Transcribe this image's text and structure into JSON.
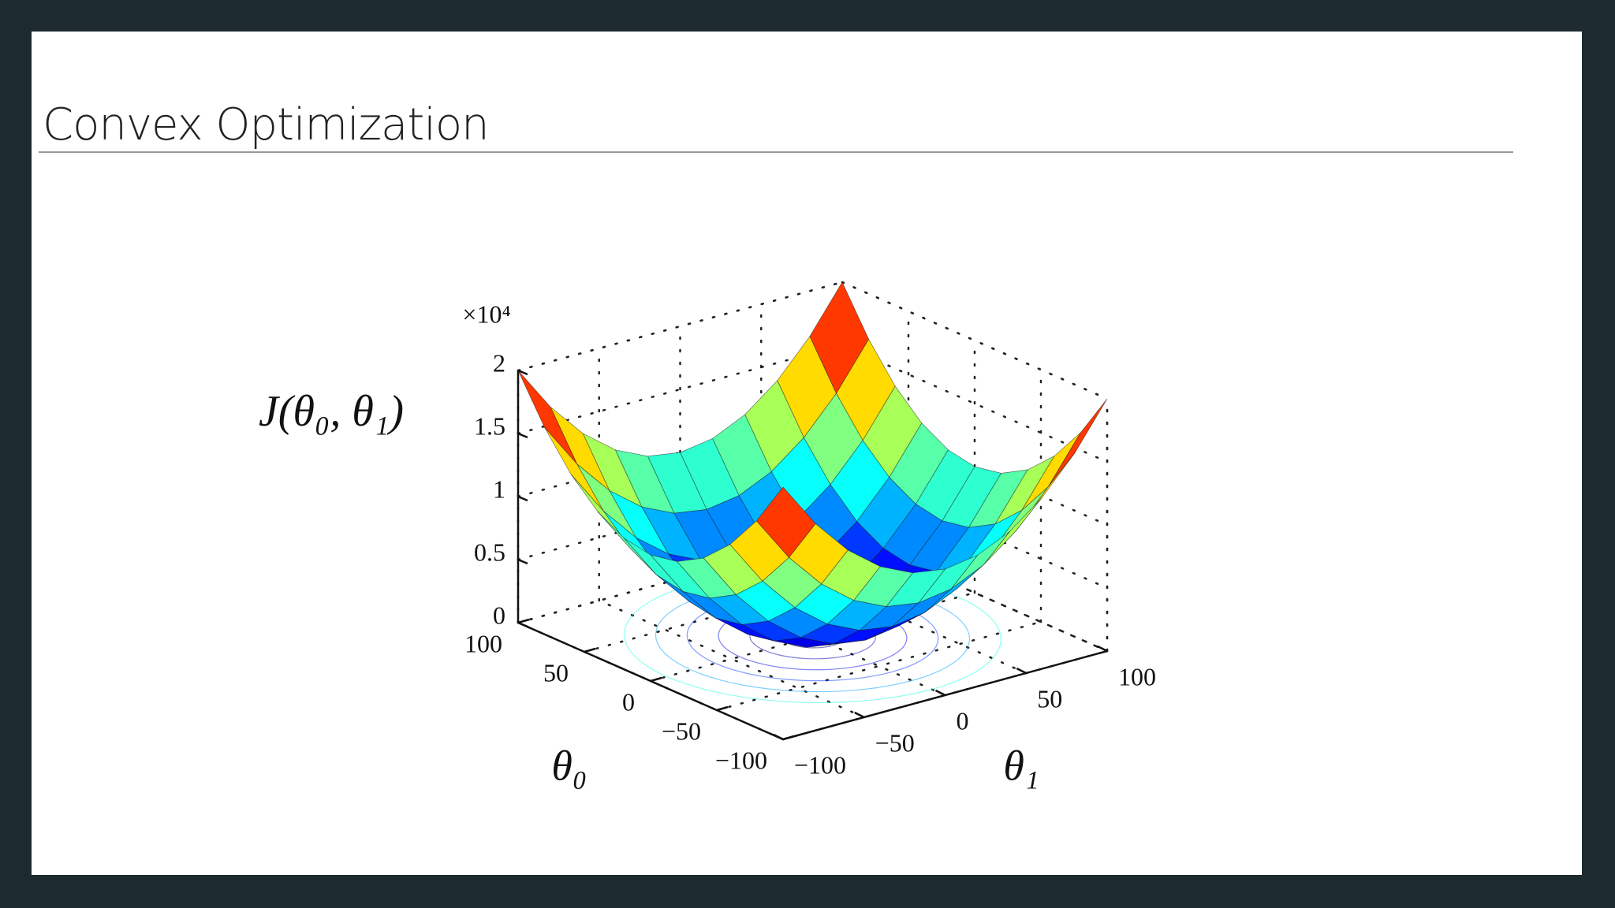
{
  "title": "Convex Optimization",
  "chart_data": {
    "type": "surface",
    "zlabel": "J(θ₀, θ₁)",
    "xlabel": "θ₀",
    "ylabel": "θ₁",
    "z_multiplier": "×10⁴",
    "colormap": "jet",
    "x": [
      -100,
      -80,
      -60,
      -40,
      -20,
      0,
      20,
      40,
      60,
      80,
      100
    ],
    "y": [
      -100,
      -80,
      -60,
      -40,
      -20,
      0,
      20,
      40,
      60,
      80,
      100
    ],
    "z": [
      [
        2,
        1.64,
        1.36,
        1.16,
        1.04,
        1,
        1.04,
        1.16,
        1.36,
        1.64,
        2
      ],
      [
        1.64,
        1.28,
        1,
        0.8,
        0.68,
        0.64,
        0.68,
        0.8,
        1,
        1.28,
        1.64
      ],
      [
        1.36,
        1,
        0.72,
        0.52,
        0.4,
        0.36,
        0.4,
        0.52,
        0.72,
        1,
        1.36
      ],
      [
        1.16,
        0.8,
        0.52,
        0.32,
        0.2,
        0.16,
        0.2,
        0.32,
        0.52,
        0.8,
        1.16
      ],
      [
        1.04,
        0.68,
        0.4,
        0.2,
        0.08,
        0.04,
        0.08,
        0.2,
        0.4,
        0.68,
        1.04
      ],
      [
        1,
        0.64,
        0.36,
        0.16,
        0.04,
        0,
        0.04,
        0.16,
        0.36,
        0.64,
        1
      ],
      [
        1.04,
        0.68,
        0.4,
        0.2,
        0.08,
        0.04,
        0.08,
        0.2,
        0.4,
        0.68,
        1.04
      ],
      [
        1.16,
        0.8,
        0.52,
        0.32,
        0.2,
        0.16,
        0.2,
        0.32,
        0.52,
        0.8,
        1.16
      ],
      [
        1.36,
        1,
        0.72,
        0.52,
        0.4,
        0.36,
        0.4,
        0.52,
        0.72,
        1,
        1.36
      ],
      [
        1.64,
        1.28,
        1,
        0.8,
        0.68,
        0.64,
        0.68,
        0.8,
        1,
        1.28,
        1.64
      ],
      [
        2,
        1.64,
        1.36,
        1.16,
        1.04,
        1,
        1.04,
        1.16,
        1.36,
        1.64,
        2
      ]
    ],
    "xlim": [
      -100,
      100
    ],
    "ylim": [
      -100,
      100
    ],
    "zlim": [
      0,
      2
    ],
    "xticks": [
      {
        "value": -100,
        "label": "−100"
      },
      {
        "value": -50,
        "label": "−50"
      },
      0,
      50,
      100
    ],
    "yticks": [
      {
        "value": -100,
        "label": "−100"
      },
      {
        "value": -50,
        "label": "−50"
      },
      0,
      50,
      100
    ],
    "zticks": [
      0,
      0.5,
      1,
      1.5,
      2
    ],
    "grid": true
  }
}
